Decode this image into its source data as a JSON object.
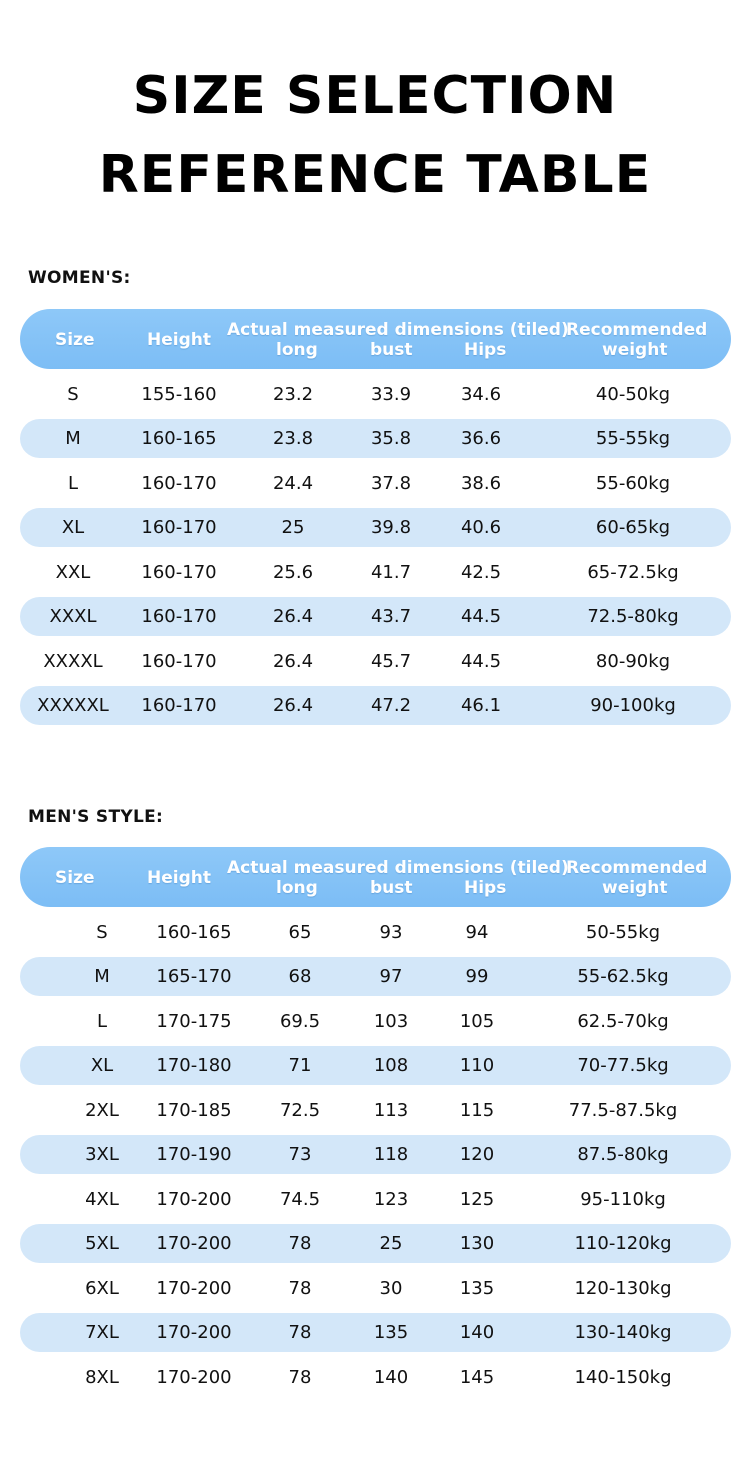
{
  "title": {
    "line1": "SIZE SELECTION",
    "line2": "REFERENCE TABLE"
  },
  "women": {
    "label": "WOMEN'S:",
    "headers": {
      "size": "Size",
      "height": "Height",
      "dims": "Actual measured dimensions (tiled)",
      "long": "long",
      "bust": "bust",
      "hips": "Hips",
      "rec1": "Recommended",
      "rec2": "weight"
    },
    "rows": [
      [
        "S",
        "155-160",
        "23.2",
        "33.9",
        "34.6",
        "40-50kg"
      ],
      [
        "M",
        "160-165",
        "23.8",
        "35.8",
        "36.6",
        "55-55kg"
      ],
      [
        "L",
        "160-170",
        "24.4",
        "37.8",
        "38.6",
        "55-60kg"
      ],
      [
        "XL",
        "160-170",
        "25",
        "39.8",
        "40.6",
        "60-65kg"
      ],
      [
        "XXL",
        "160-170",
        "25.6",
        "41.7",
        "42.5",
        "65-72.5kg"
      ],
      [
        "XXXL",
        "160-170",
        "26.4",
        "43.7",
        "44.5",
        "72.5-80kg"
      ],
      [
        "XXXXL",
        "160-170",
        "26.4",
        "45.7",
        "44.5",
        "80-90kg"
      ],
      [
        "XXXXXL",
        "160-170",
        "26.4",
        "47.2",
        "46.1",
        "90-100kg"
      ]
    ]
  },
  "men": {
    "label": "MEN'S STYLE:",
    "headers": {
      "size": "Size",
      "height": "Height",
      "dims": "Actual measured dimensions (tiled)",
      "long": "long",
      "bust": "bust",
      "hips": "Hips",
      "rec1": "Recommended",
      "rec2": "weight"
    },
    "rows": [
      [
        "S",
        "160-165",
        "65",
        "93",
        "94",
        "50-55kg"
      ],
      [
        "M",
        "165-170",
        "68",
        "97",
        "99",
        "55-62.5kg"
      ],
      [
        "L",
        "170-175",
        "69.5",
        "103",
        "105",
        "62.5-70kg"
      ],
      [
        "XL",
        "170-180",
        "71",
        "108",
        "110",
        "70-77.5kg"
      ],
      [
        "2XL",
        "170-185",
        "72.5",
        "113",
        "115",
        "77.5-87.5kg"
      ],
      [
        "3XL",
        "170-190",
        "73",
        "118",
        "120",
        "87.5-80kg"
      ],
      [
        "4XL",
        "170-200",
        "74.5",
        "123",
        "125",
        "95-110kg"
      ],
      [
        "5XL",
        "170-200",
        "78",
        "25",
        "130",
        "110-120kg"
      ],
      [
        "6XL",
        "170-200",
        "78",
        "30",
        "135",
        "120-130kg"
      ],
      [
        "7XL",
        "170-200",
        "78",
        "135",
        "140",
        "130-140kg"
      ],
      [
        "8XL",
        "170-200",
        "78",
        "140",
        "145",
        "140-150kg"
      ]
    ]
  },
  "colors": {
    "header_bg": "#7cbdf5",
    "row_shade": "#d3e7f9"
  }
}
